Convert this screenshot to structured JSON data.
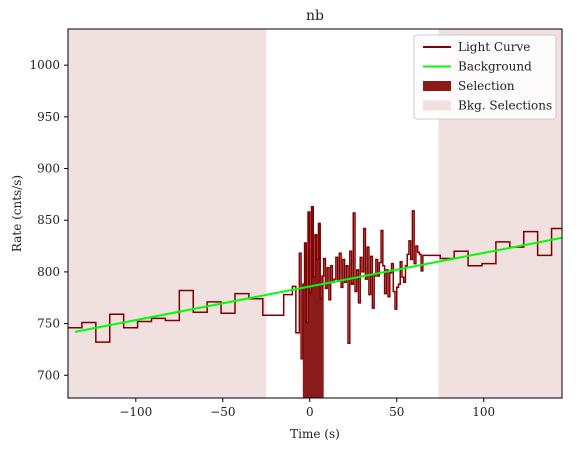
{
  "chart_data": {
    "type": "line",
    "title": "nb",
    "xlabel": "Time (s)",
    "ylabel": "Rate (cnts/s)",
    "xlim": [
      -139,
      145
    ],
    "ylim": [
      678,
      1035
    ],
    "xticks": [
      -100,
      -50,
      0,
      50,
      100
    ],
    "yticks": [
      700,
      750,
      800,
      850,
      900,
      950,
      1000
    ],
    "xtick_labels": [
      "−100",
      "−50",
      "0",
      "50",
      "100"
    ],
    "ytick_labels": [
      "700",
      "750",
      "800",
      "850",
      "900",
      "950",
      "1000"
    ],
    "grid": false,
    "legend_position": "top-right",
    "legend": [
      {
        "label": "Light Curve",
        "kind": "line",
        "color": "#7f0000"
      },
      {
        "label": "Background",
        "kind": "line",
        "color": "#00ff00"
      },
      {
        "label": "Selection",
        "kind": "patch",
        "color": "#8b1a1a"
      },
      {
        "label": "Bkg. Selections",
        "kind": "patch",
        "color": "#f0e0e0"
      }
    ],
    "colors": {
      "light_curve": "#7f0000",
      "background": "#00ff00",
      "selection": "#8b1a1a",
      "bkg_selection": "#f0e0e0"
    },
    "light_curve": {
      "edges": [
        -139,
        -131,
        -123,
        -115,
        -107,
        -99,
        -91,
        -83,
        -75,
        -67,
        -59,
        -51,
        -43,
        -35,
        -27,
        -20,
        -15,
        -10,
        -8,
        -6,
        -5,
        -4,
        -3,
        -2,
        -1,
        0,
        1,
        2,
        3,
        4,
        5,
        6,
        7,
        8,
        9,
        10,
        11,
        12,
        13,
        14,
        15,
        16,
        17,
        18,
        19,
        20,
        21,
        22,
        23,
        24,
        25,
        26,
        27,
        28,
        29,
        30,
        31,
        32,
        33,
        34,
        35,
        36,
        37,
        38,
        39,
        40,
        41,
        42,
        43,
        44,
        45,
        46,
        47,
        48,
        49,
        50,
        51,
        52,
        53,
        54,
        55,
        56,
        57,
        58,
        59,
        60,
        61,
        62,
        63,
        64,
        65,
        67,
        75,
        83,
        91,
        99,
        107,
        115,
        123,
        131,
        139,
        147
      ],
      "values": [
        746,
        751,
        732,
        759,
        746,
        752,
        755,
        753,
        782,
        761,
        771,
        760,
        779,
        774,
        758,
        758,
        778,
        786,
        741,
        818,
        716,
        788,
        828,
        751,
        858,
        780,
        863,
        795,
        836,
        812,
        847,
        774,
        796,
        813,
        784,
        804,
        773,
        806,
        790,
        793,
        814,
        791,
        818,
        785,
        812,
        790,
        806,
        731,
        820,
        788,
        857,
        781,
        802,
        770,
        814,
        800,
        842,
        793,
        824,
        778,
        815,
        765,
        796,
        812,
        796,
        809,
        840,
        806,
        779,
        802,
        776,
        799,
        808,
        781,
        764,
        785,
        788,
        810,
        795,
        790,
        806,
        817,
        830,
        812,
        859,
        808,
        825,
        819,
        817,
        801,
        816,
        816,
        813,
        820,
        806,
        808,
        829,
        824,
        839,
        816,
        842
      ]
    },
    "background": {
      "x": [
        -135,
        145
      ],
      "y": [
        742,
        833
      ]
    },
    "selection": [
      -4,
      8
    ],
    "bkg_selections": [
      [
        -139,
        -25
      ],
      [
        74,
        145
      ]
    ]
  }
}
